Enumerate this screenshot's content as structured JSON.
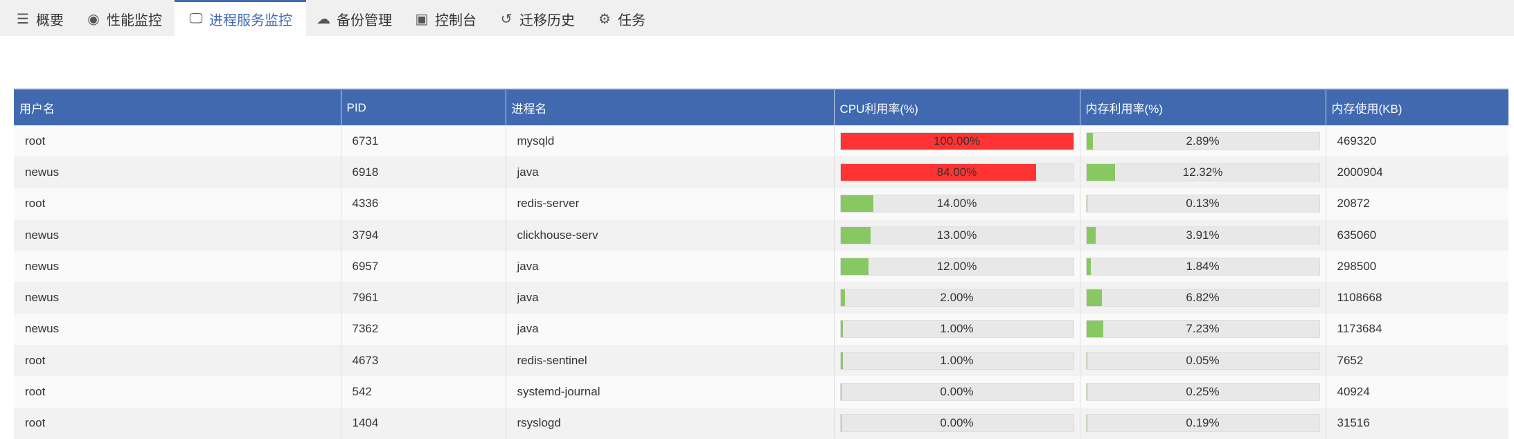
{
  "tabs": [
    {
      "label": "概要",
      "icon": "list-icon",
      "glyph": "☰"
    },
    {
      "label": "性能监控",
      "icon": "webcam-icon",
      "glyph": "◉"
    },
    {
      "label": "进程服务监控",
      "icon": "monitor-icon",
      "glyph": "🖵",
      "active": true
    },
    {
      "label": "备份管理",
      "icon": "cloud-backup-icon",
      "glyph": "☁"
    },
    {
      "label": "控制台",
      "icon": "terminal-icon",
      "glyph": "▣"
    },
    {
      "label": "迁移历史",
      "icon": "history-icon",
      "glyph": "↺"
    },
    {
      "label": "任务",
      "icon": "gear-icon",
      "glyph": "⚙"
    }
  ],
  "colors": {
    "accent": "#4169b0",
    "high": "#ff3333",
    "normal": "#88c862"
  },
  "table": {
    "headers": [
      "用户名",
      "PID",
      "进程名",
      "CPU利用率(%)",
      "内存利用率(%)",
      "内存使用(KB)"
    ],
    "rows": [
      {
        "user": "root",
        "pid": "6731",
        "name": "mysqld",
        "cpu": 100.0,
        "cpu_label": "100.00%",
        "mem": 2.89,
        "mem_label": "2.89%",
        "kb": "469320"
      },
      {
        "user": "newus",
        "pid": "6918",
        "name": "java",
        "cpu": 84.0,
        "cpu_label": "84.00%",
        "mem": 12.32,
        "mem_label": "12.32%",
        "kb": "2000904"
      },
      {
        "user": "root",
        "pid": "4336",
        "name": "redis-server",
        "cpu": 14.0,
        "cpu_label": "14.00%",
        "mem": 0.13,
        "mem_label": "0.13%",
        "kb": "20872"
      },
      {
        "user": "newus",
        "pid": "3794",
        "name": "clickhouse-serv",
        "cpu": 13.0,
        "cpu_label": "13.00%",
        "mem": 3.91,
        "mem_label": "3.91%",
        "kb": "635060"
      },
      {
        "user": "newus",
        "pid": "6957",
        "name": "java",
        "cpu": 12.0,
        "cpu_label": "12.00%",
        "mem": 1.84,
        "mem_label": "1.84%",
        "kb": "298500"
      },
      {
        "user": "newus",
        "pid": "7961",
        "name": "java",
        "cpu": 2.0,
        "cpu_label": "2.00%",
        "mem": 6.82,
        "mem_label": "6.82%",
        "kb": "1108668"
      },
      {
        "user": "newus",
        "pid": "7362",
        "name": "java",
        "cpu": 1.0,
        "cpu_label": "1.00%",
        "mem": 7.23,
        "mem_label": "7.23%",
        "kb": "1173684"
      },
      {
        "user": "root",
        "pid": "4673",
        "name": "redis-sentinel",
        "cpu": 1.0,
        "cpu_label": "1.00%",
        "mem": 0.05,
        "mem_label": "0.05%",
        "kb": "7652"
      },
      {
        "user": "root",
        "pid": "542",
        "name": "systemd-journal",
        "cpu": 0.0,
        "cpu_label": "0.00%",
        "mem": 0.25,
        "mem_label": "0.25%",
        "kb": "40924"
      },
      {
        "user": "root",
        "pid": "1404",
        "name": "rsyslogd",
        "cpu": 0.0,
        "cpu_label": "0.00%",
        "mem": 0.19,
        "mem_label": "0.19%",
        "kb": "31516"
      }
    ]
  }
}
